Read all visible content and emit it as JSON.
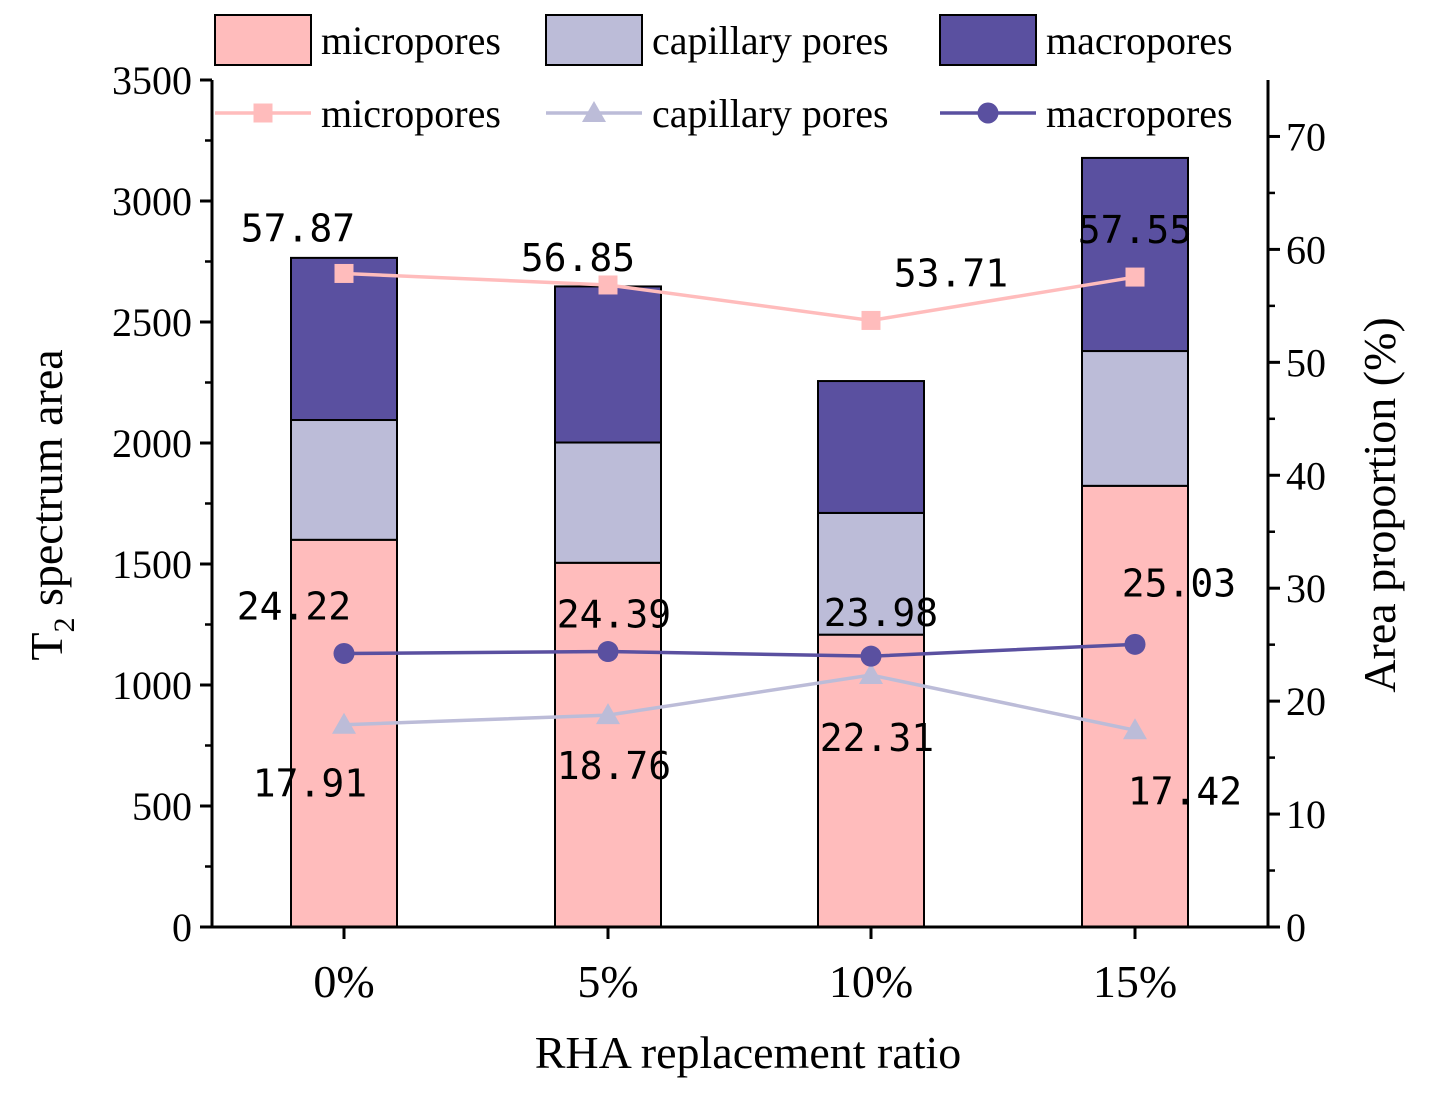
{
  "chart_data": {
    "type": "bar",
    "categories": [
      "0%",
      "5%",
      "10%",
      "15%"
    ],
    "xlabel": "RHA replacement ratio",
    "ylabel_main": "T",
    "ylabel_sub": "2",
    "ylabel_rest": " spectrum area",
    "y2label": "Area proportion (%)",
    "ylim": [
      0,
      3500
    ],
    "y2lim": [
      0,
      75
    ],
    "yticks": [
      0,
      500,
      1000,
      1500,
      2000,
      2500,
      3000,
      3500
    ],
    "yticklabels": [
      "0",
      "500",
      "1000",
      "1500",
      "2000",
      "2500",
      "3000",
      "3500"
    ],
    "y2ticks": [
      0,
      10,
      20,
      30,
      40,
      50,
      60,
      70
    ],
    "y2ticklabels": [
      "0",
      "10",
      "20",
      "30",
      "40",
      "50",
      "60",
      "70"
    ],
    "bar_series": [
      {
        "name": "micropores",
        "color": "#ffbcbc",
        "values": [
          1600,
          1505,
          1208,
          1823
        ]
      },
      {
        "name": "capillary pores",
        "color": "#bcbcd8",
        "values": [
          495,
          497,
          503,
          557
        ]
      },
      {
        "name": "macropores",
        "color": "#5a50a0",
        "values": [
          670,
          645,
          545,
          798
        ]
      }
    ],
    "line_series": [
      {
        "name": "micropores",
        "color": "#ffbcbc",
        "marker": "square",
        "values": [
          57.87,
          56.85,
          53.71,
          57.55
        ],
        "labels": [
          "57.87",
          "56.85",
          "53.71",
          "57.55"
        ]
      },
      {
        "name": "capillary pores",
        "color": "#bcbcd8",
        "marker": "triangle",
        "values": [
          17.91,
          18.76,
          22.31,
          17.42
        ],
        "labels": [
          "17.91",
          "18.76",
          "22.31",
          "17.42"
        ]
      },
      {
        "name": "macropores",
        "color": "#5a50a0",
        "marker": "circle",
        "values": [
          24.22,
          24.39,
          23.98,
          25.03
        ],
        "labels": [
          "24.22",
          "24.39",
          "23.98",
          "25.03"
        ]
      }
    ]
  }
}
